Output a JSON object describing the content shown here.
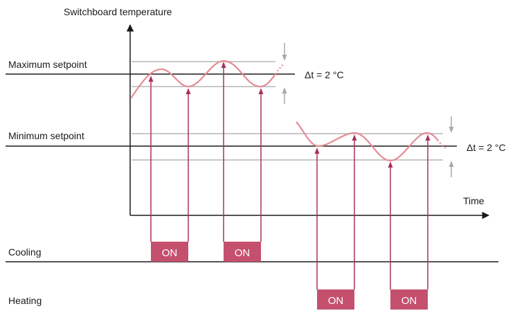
{
  "diagram": {
    "y_axis_label": "Switchboard temperature",
    "x_axis_label": "Time",
    "max_setpoint_label": "Maximum setpoint",
    "min_setpoint_label": "Minimum setpoint",
    "delta_max_label": "Δt = 2 °C",
    "delta_min_label": "Δt = 2 °C",
    "cooling_label": "Cooling",
    "heating_label": "Heating",
    "cooling_on": [
      "ON",
      "ON"
    ],
    "heating_on": [
      "ON",
      "ON"
    ]
  },
  "colors": {
    "curve": "#e48b95",
    "arrow": "#a8305a",
    "on_fill": "#c4506e",
    "band_line": "#b5b5b5",
    "axis": "#1a1a1a"
  }
}
